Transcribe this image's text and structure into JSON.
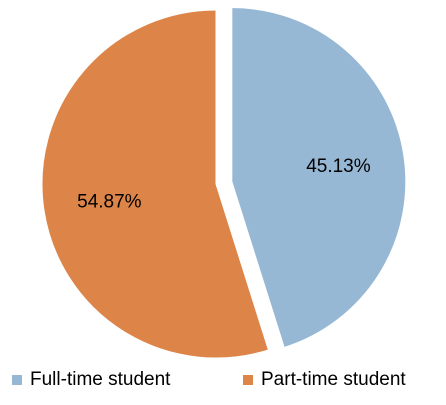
{
  "chart_data": {
    "type": "pie",
    "slices": [
      {
        "label": "Full-time student",
        "value": 45.13,
        "display": "45.13%",
        "color": "#97b8d4",
        "exploded": true
      },
      {
        "label": "Part-time student",
        "value": 54.87,
        "display": "54.87%",
        "color": "#dd8449",
        "exploded": false
      }
    ],
    "start_angle_deg": 0,
    "direction": "clockwise",
    "legend": {
      "placement": "bottom",
      "entries": [
        "Full-time student",
        "Part-time student"
      ]
    }
  }
}
